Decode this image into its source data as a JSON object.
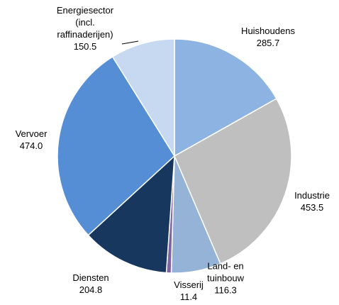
{
  "chart_data": {
    "type": "pie",
    "categories": [
      "Huishoudens",
      "Industrie",
      "Land- en\ntuinbouw",
      "Visserij",
      "Diensten",
      "Vervoer",
      "Energiesector\n(incl.\nraffinaderijen)"
    ],
    "values": [
      285.7,
      453.5,
      116.3,
      11.4,
      204.8,
      474.0,
      150.5
    ],
    "value_labels": [
      "285.7",
      "453.5",
      "116.3",
      "11.4",
      "204.8",
      "474.0",
      "150.5"
    ],
    "colors": [
      "#8db3e2",
      "#bfbfbf",
      "#95b3d7",
      "#8064a2",
      "#17375e",
      "#558ed5",
      "#c6d9f0"
    ]
  }
}
